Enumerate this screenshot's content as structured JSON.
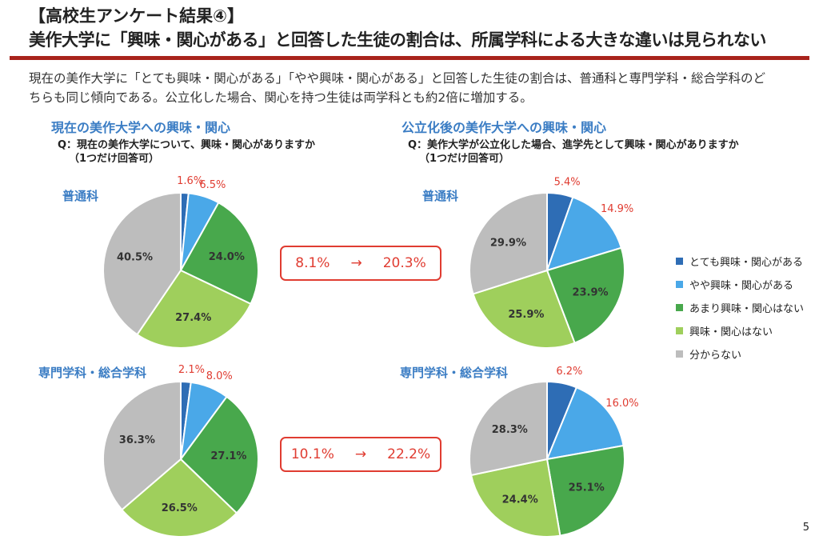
{
  "header": {
    "title": "【高校生アンケート結果④】",
    "subtitle": "美作大学に「興味・関心がある」と回答した生徒の割合は、所属学科による大きな違いは見られない"
  },
  "description": [
    "現在の美作大学に「とても興味・関心がある」「やや興味・関心がある」と回答した生徒の割合は、普通科と専門学科・総合学科のど",
    "ちらも同じ傾向である。公立化した場合、関心を持つ生徒は両学科とも約2倍に増加する。"
  ],
  "sections": [
    {
      "title": "現在の美作大学への興味・関心",
      "question": "Q：現在の美作大学について、興味・関心がありますか",
      "note": "（1つだけ回答可）"
    },
    {
      "title": "公立化後の美作大学への興味・関心",
      "question": "Q：美作大学が公立化した場合、進学先として興味・関心がありますか",
      "note": "（1つだけ回答可）"
    }
  ],
  "comparisons": [
    {
      "from": "8.1%",
      "arrow": "→",
      "to": "20.3%"
    },
    {
      "from": "10.1%",
      "arrow": "→",
      "to": "22.2%"
    }
  ],
  "page_number": "5",
  "chart_data": {
    "type": "pie",
    "legend_position": "right",
    "categories": [
      "とても興味・関心がある",
      "やや興味・関心がある",
      "あまり興味・関心はない",
      "興味・関心はない",
      "分からない"
    ],
    "colors": [
      "#2e6db5",
      "#4aa8e8",
      "#48a84c",
      "#9fcf5c",
      "#bdbdbd"
    ],
    "label_colors": {
      "outside": "#e03c31",
      "inside": "#333333"
    },
    "charts": [
      {
        "group": "普通科",
        "section": "現在",
        "values": [
          1.6,
          6.5,
          24.0,
          27.4,
          40.5
        ]
      },
      {
        "group": "普通科",
        "section": "公立化後",
        "values": [
          5.4,
          14.9,
          23.9,
          25.9,
          29.9
        ]
      },
      {
        "group": "専門学科・総合学科",
        "section": "現在",
        "values": [
          2.1,
          8.0,
          27.1,
          26.5,
          36.3
        ]
      },
      {
        "group": "専門学科・総合学科",
        "section": "公立化後",
        "values": [
          6.2,
          16.0,
          25.1,
          24.4,
          28.3
        ]
      }
    ]
  }
}
